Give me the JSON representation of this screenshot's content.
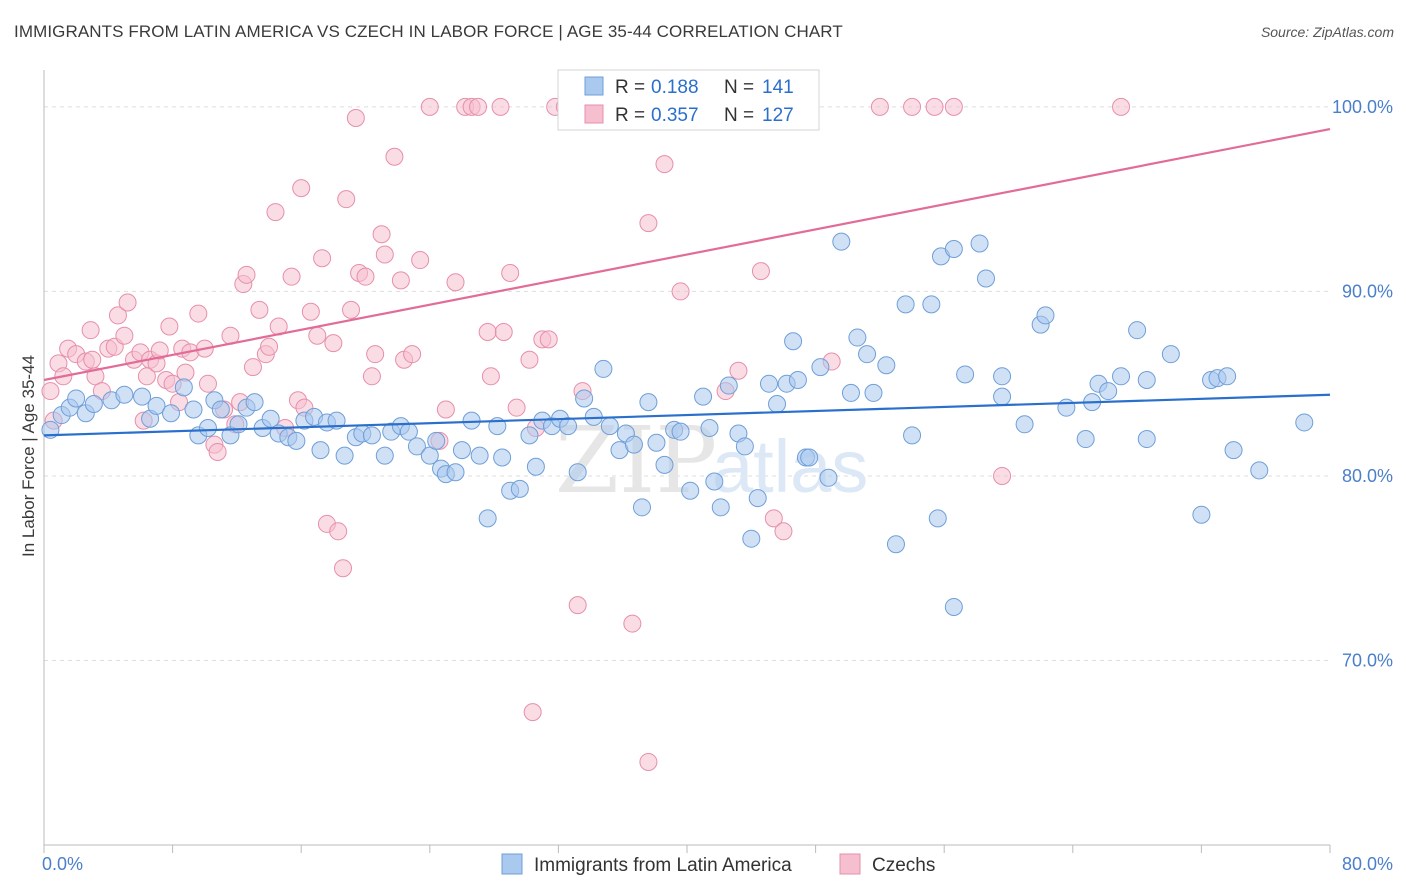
{
  "title": "IMMIGRANTS FROM LATIN AMERICA VS CZECH IN LABOR FORCE | AGE 35-44 CORRELATION CHART",
  "source": "Source: ZipAtlas.com",
  "watermark": {
    "zip": "ZIP",
    "atlas": "atlas"
  },
  "colors": {
    "blue_fill": "#a9c9ee",
    "blue_stroke": "#6f9fd8",
    "blue_line": "#2a6fcc",
    "pink_fill": "#f5bfd0",
    "pink_stroke": "#e78fab",
    "pink_line": "#e26c98",
    "tick_label": "#4a7fc9",
    "grid": "#dddddd"
  },
  "chart_data": {
    "type": "scatter",
    "title": "IMMIGRANTS FROM LATIN AMERICA VS CZECH IN LABOR FORCE | AGE 35-44 CORRELATION CHART",
    "xlabel": "",
    "ylabel": "In Labor Force | Age 35-44",
    "xlim": [
      0,
      80
    ],
    "ylim": [
      60,
      102
    ],
    "x_tick_labels": [
      "0.0%",
      "80.0%"
    ],
    "y_ticks": [
      70,
      80,
      90,
      100
    ],
    "y_tick_labels": [
      "70.0%",
      "80.0%",
      "90.0%",
      "100.0%"
    ],
    "grid": "horizontal dashed",
    "legend": {
      "placement": "top-center",
      "rows": [
        {
          "r_label": "R =",
          "r_value": "0.188",
          "n_label": "N =",
          "n_value": "141"
        },
        {
          "r_label": "R =",
          "r_value": "0.357",
          "n_label": "N =",
          "n_value": "127"
        }
      ]
    },
    "bottom_legend": [
      "Immigrants from Latin America",
      "Czechs"
    ],
    "series": [
      {
        "name": "Immigrants from Latin America",
        "color": "#a9c9ee",
        "trend": {
          "x": [
            0,
            80
          ],
          "y": [
            82.2,
            84.4
          ]
        },
        "points": [
          [
            0.4,
            82.5
          ],
          [
            1.1,
            83.3
          ],
          [
            1.6,
            83.7
          ],
          [
            2.0,
            84.2
          ],
          [
            2.6,
            83.4
          ],
          [
            3.1,
            83.9
          ],
          [
            4.2,
            84.1
          ],
          [
            5.0,
            84.4
          ],
          [
            6.1,
            84.3
          ],
          [
            6.6,
            83.1
          ],
          [
            7.0,
            83.8
          ],
          [
            7.9,
            83.4
          ],
          [
            8.7,
            84.8
          ],
          [
            9.3,
            83.6
          ],
          [
            9.6,
            82.2
          ],
          [
            10.2,
            82.6
          ],
          [
            10.6,
            84.1
          ],
          [
            11.0,
            83.6
          ],
          [
            11.6,
            82.2
          ],
          [
            12.1,
            82.8
          ],
          [
            12.6,
            83.7
          ],
          [
            13.1,
            84.0
          ],
          [
            13.6,
            82.6
          ],
          [
            14.1,
            83.1
          ],
          [
            14.6,
            82.3
          ],
          [
            15.2,
            82.1
          ],
          [
            15.7,
            81.9
          ],
          [
            16.2,
            83.0
          ],
          [
            16.8,
            83.2
          ],
          [
            17.2,
            81.4
          ],
          [
            17.6,
            82.9
          ],
          [
            18.2,
            83.0
          ],
          [
            18.7,
            81.1
          ],
          [
            19.4,
            82.1
          ],
          [
            19.8,
            82.3
          ],
          [
            20.4,
            82.2
          ],
          [
            21.2,
            81.1
          ],
          [
            21.6,
            82.4
          ],
          [
            22.2,
            82.7
          ],
          [
            22.7,
            82.4
          ],
          [
            23.2,
            81.6
          ],
          [
            24.0,
            81.1
          ],
          [
            24.4,
            81.9
          ],
          [
            24.7,
            80.4
          ],
          [
            25.0,
            80.1
          ],
          [
            25.6,
            80.2
          ],
          [
            26.0,
            81.4
          ],
          [
            26.6,
            83.0
          ],
          [
            27.1,
            81.1
          ],
          [
            27.6,
            77.7
          ],
          [
            28.2,
            82.7
          ],
          [
            28.5,
            81.0
          ],
          [
            29.0,
            79.2
          ],
          [
            29.6,
            79.3
          ],
          [
            30.2,
            82.2
          ],
          [
            30.6,
            80.5
          ],
          [
            31.0,
            83.0
          ],
          [
            31.6,
            82.7
          ],
          [
            32.1,
            83.1
          ],
          [
            32.6,
            82.7
          ],
          [
            33.2,
            80.2
          ],
          [
            33.6,
            84.2
          ],
          [
            34.2,
            83.2
          ],
          [
            34.8,
            85.8
          ],
          [
            35.2,
            82.7
          ],
          [
            35.8,
            81.4
          ],
          [
            36.2,
            82.3
          ],
          [
            36.7,
            81.7
          ],
          [
            37.2,
            78.3
          ],
          [
            37.6,
            84.0
          ],
          [
            38.1,
            81.8
          ],
          [
            38.6,
            80.6
          ],
          [
            39.2,
            82.5
          ],
          [
            39.6,
            82.4
          ],
          [
            40.2,
            79.2
          ],
          [
            41.0,
            84.3
          ],
          [
            41.4,
            82.6
          ],
          [
            41.7,
            79.7
          ],
          [
            42.1,
            78.3
          ],
          [
            42.6,
            84.9
          ],
          [
            43.2,
            82.3
          ],
          [
            43.6,
            81.6
          ],
          [
            44.0,
            76.6
          ],
          [
            44.4,
            78.8
          ],
          [
            45.1,
            85.0
          ],
          [
            45.6,
            83.9
          ],
          [
            46.2,
            85.0
          ],
          [
            46.6,
            87.3
          ],
          [
            46.9,
            85.2
          ],
          [
            47.4,
            81.0
          ],
          [
            47.6,
            81.0
          ],
          [
            48.3,
            85.9
          ],
          [
            48.8,
            79.9
          ],
          [
            49.6,
            92.7
          ],
          [
            50.2,
            84.5
          ],
          [
            50.6,
            87.5
          ],
          [
            51.2,
            86.6
          ],
          [
            51.6,
            84.5
          ],
          [
            52.4,
            86.0
          ],
          [
            53.0,
            76.3
          ],
          [
            53.6,
            89.3
          ],
          [
            54.0,
            82.2
          ],
          [
            55.2,
            89.3
          ],
          [
            55.6,
            77.7
          ],
          [
            55.8,
            91.9
          ],
          [
            56.6,
            92.3
          ],
          [
            56.6,
            72.9
          ],
          [
            57.3,
            85.5
          ],
          [
            58.2,
            92.6
          ],
          [
            58.6,
            90.7
          ],
          [
            59.6,
            84.3
          ],
          [
            59.6,
            85.4
          ],
          [
            61.0,
            82.8
          ],
          [
            62.0,
            88.2
          ],
          [
            62.3,
            88.7
          ],
          [
            63.6,
            83.7
          ],
          [
            64.8,
            82.0
          ],
          [
            65.2,
            84.0
          ],
          [
            65.6,
            85.0
          ],
          [
            66.2,
            84.6
          ],
          [
            67.0,
            85.4
          ],
          [
            68.0,
            87.9
          ],
          [
            68.6,
            82.0
          ],
          [
            68.6,
            85.2
          ],
          [
            70.1,
            86.6
          ],
          [
            72.0,
            77.9
          ],
          [
            72.6,
            85.2
          ],
          [
            73.0,
            85.3
          ],
          [
            73.6,
            85.4
          ],
          [
            74.0,
            81.4
          ],
          [
            75.6,
            80.3
          ],
          [
            78.4,
            82.9
          ]
        ]
      },
      {
        "name": "Czechs",
        "color": "#f5bfd0",
        "trend": {
          "x": [
            0,
            80
          ],
          "y": [
            85.2,
            98.8
          ]
        },
        "points": [
          [
            0.4,
            84.6
          ],
          [
            0.6,
            83.0
          ],
          [
            0.9,
            86.1
          ],
          [
            1.2,
            85.4
          ],
          [
            1.5,
            86.9
          ],
          [
            2.0,
            86.6
          ],
          [
            2.6,
            86.2
          ],
          [
            2.9,
            87.9
          ],
          [
            3.0,
            86.3
          ],
          [
            3.2,
            85.4
          ],
          [
            3.6,
            84.6
          ],
          [
            4.0,
            86.9
          ],
          [
            4.4,
            87.0
          ],
          [
            4.6,
            88.7
          ],
          [
            5.0,
            87.6
          ],
          [
            5.2,
            89.4
          ],
          [
            5.6,
            86.3
          ],
          [
            6.0,
            86.7
          ],
          [
            6.2,
            83.0
          ],
          [
            6.4,
            85.4
          ],
          [
            6.6,
            86.3
          ],
          [
            7.0,
            86.1
          ],
          [
            7.2,
            86.8
          ],
          [
            7.6,
            85.2
          ],
          [
            7.8,
            88.1
          ],
          [
            8.0,
            85.0
          ],
          [
            8.4,
            84.0
          ],
          [
            8.6,
            86.9
          ],
          [
            8.8,
            85.6
          ],
          [
            9.1,
            86.7
          ],
          [
            9.6,
            88.8
          ],
          [
            10.0,
            86.9
          ],
          [
            10.2,
            85.0
          ],
          [
            10.6,
            81.7
          ],
          [
            10.8,
            81.3
          ],
          [
            11.2,
            83.6
          ],
          [
            11.6,
            87.6
          ],
          [
            11.9,
            82.8
          ],
          [
            12.2,
            84.0
          ],
          [
            12.4,
            90.4
          ],
          [
            12.6,
            90.9
          ],
          [
            13.0,
            85.9
          ],
          [
            13.4,
            89.0
          ],
          [
            13.8,
            86.6
          ],
          [
            14.0,
            87.0
          ],
          [
            14.4,
            94.3
          ],
          [
            14.6,
            88.1
          ],
          [
            15.0,
            82.6
          ],
          [
            15.4,
            90.8
          ],
          [
            15.8,
            84.1
          ],
          [
            16.0,
            95.6
          ],
          [
            16.2,
            83.7
          ],
          [
            16.6,
            88.9
          ],
          [
            17.0,
            87.6
          ],
          [
            17.3,
            91.8
          ],
          [
            17.6,
            77.4
          ],
          [
            18.0,
            87.2
          ],
          [
            18.3,
            77.0
          ],
          [
            18.6,
            75.0
          ],
          [
            18.8,
            95.0
          ],
          [
            19.1,
            89.0
          ],
          [
            19.4,
            99.4
          ],
          [
            19.6,
            91.0
          ],
          [
            20.0,
            90.8
          ],
          [
            20.4,
            85.4
          ],
          [
            20.6,
            86.6
          ],
          [
            21.0,
            93.1
          ],
          [
            21.2,
            92.0
          ],
          [
            21.8,
            97.3
          ],
          [
            22.2,
            90.6
          ],
          [
            22.4,
            86.3
          ],
          [
            22.9,
            86.6
          ],
          [
            23.4,
            91.7
          ],
          [
            24.0,
            100.0
          ],
          [
            24.6,
            81.9
          ],
          [
            25.0,
            83.6
          ],
          [
            25.6,
            90.5
          ],
          [
            26.2,
            100.0
          ],
          [
            26.6,
            100.0
          ],
          [
            27.0,
            100.0
          ],
          [
            27.6,
            87.8
          ],
          [
            27.8,
            85.4
          ],
          [
            28.4,
            100.0
          ],
          [
            28.6,
            87.8
          ],
          [
            29.0,
            91.0
          ],
          [
            29.4,
            83.7
          ],
          [
            30.2,
            86.3
          ],
          [
            30.6,
            82.6
          ],
          [
            31.0,
            87.4
          ],
          [
            31.4,
            87.4
          ],
          [
            31.8,
            100.0
          ],
          [
            32.4,
            100.0
          ],
          [
            33.2,
            73.0
          ],
          [
            33.5,
            84.6
          ],
          [
            35.4,
            100.0
          ],
          [
            36.2,
            100.0
          ],
          [
            36.6,
            72.0
          ],
          [
            37.2,
            100.0
          ],
          [
            37.6,
            93.7
          ],
          [
            38.0,
            100.0
          ],
          [
            38.6,
            96.9
          ],
          [
            38.8,
            100.0
          ],
          [
            39.6,
            90.0
          ],
          [
            40.4,
            100.0
          ],
          [
            41.6,
            100.0
          ],
          [
            42.4,
            84.6
          ],
          [
            42.8,
            100.0
          ],
          [
            43.2,
            85.7
          ],
          [
            44.6,
            91.1
          ],
          [
            44.8,
            100.0
          ],
          [
            45.4,
            77.7
          ],
          [
            46.0,
            77.0
          ],
          [
            46.6,
            100.0
          ],
          [
            47.0,
            100.0
          ],
          [
            49.0,
            86.2
          ],
          [
            52.0,
            100.0
          ],
          [
            54.0,
            100.0
          ],
          [
            55.4,
            100.0
          ],
          [
            56.6,
            100.0
          ],
          [
            59.6,
            80.0
          ],
          [
            67.0,
            100.0
          ],
          [
            30.4,
            67.2
          ],
          [
            37.6,
            64.5
          ]
        ]
      }
    ]
  }
}
